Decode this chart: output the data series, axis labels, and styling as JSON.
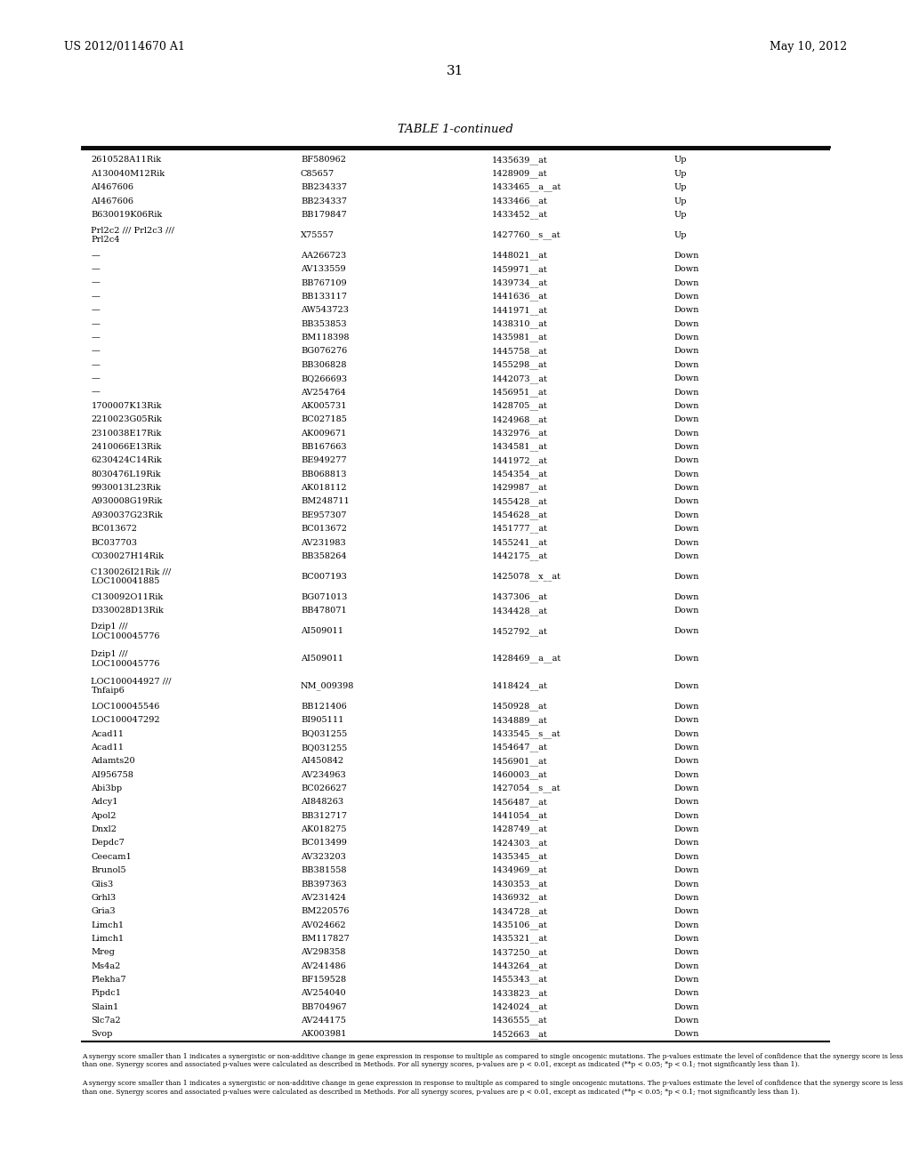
{
  "header_left": "US 2012/0114670 A1",
  "header_right": "May 10, 2012",
  "page_number": "31",
  "table_title": "TABLE 1-continued",
  "rows": [
    [
      "2610528A11Rik",
      "BF580962",
      "1435639__at",
      "Up"
    ],
    [
      "A130040M12Rik",
      "C85657",
      "1428909__at",
      "Up"
    ],
    [
      "AI467606",
      "BB234337",
      "1433465__a__at",
      "Up"
    ],
    [
      "AI467606",
      "BB234337",
      "1433466__at",
      "Up"
    ],
    [
      "B630019K06Rik",
      "BB179847",
      "1433452__at",
      "Up"
    ],
    [
      "Prl2c2 /// Prl2c3 ///\nPrl2c4",
      "X75557",
      "1427760__s__at",
      "Up"
    ],
    [
      "—",
      "AA266723",
      "1448021__at",
      "Down"
    ],
    [
      "—",
      "AV133559",
      "1459971__at",
      "Down"
    ],
    [
      "—",
      "BB767109",
      "1439734__at",
      "Down"
    ],
    [
      "—",
      "BB133117",
      "1441636__at",
      "Down"
    ],
    [
      "—",
      "AW543723",
      "1441971__at",
      "Down"
    ],
    [
      "—",
      "BB353853",
      "1438310__at",
      "Down"
    ],
    [
      "—",
      "BM118398",
      "1435981__at",
      "Down"
    ],
    [
      "—",
      "BG076276",
      "1445758__at",
      "Down"
    ],
    [
      "—",
      "BB306828",
      "1455298__at",
      "Down"
    ],
    [
      "—",
      "BQ266693",
      "1442073__at",
      "Down"
    ],
    [
      "—",
      "AV254764",
      "1456951__at",
      "Down"
    ],
    [
      "1700007K13Rik",
      "AK005731",
      "1428705__at",
      "Down"
    ],
    [
      "2210023G05Rik",
      "BC027185",
      "1424968__at",
      "Down"
    ],
    [
      "2310038E17Rik",
      "AK009671",
      "1432976__at",
      "Down"
    ],
    [
      "2410066E13Rik",
      "BB167663",
      "1434581__at",
      "Down"
    ],
    [
      "6230424C14Rik",
      "BE949277",
      "1441972__at",
      "Down"
    ],
    [
      "8030476L19Rik",
      "BB068813",
      "1454354__at",
      "Down"
    ],
    [
      "9930013L23Rik",
      "AK018112",
      "1429987__at",
      "Down"
    ],
    [
      "A930008G19Rik",
      "BM248711",
      "1455428__at",
      "Down"
    ],
    [
      "A930037G23Rik",
      "BE957307",
      "1454628__at",
      "Down"
    ],
    [
      "BC013672",
      "BC013672",
      "1451777__at",
      "Down"
    ],
    [
      "BC037703",
      "AV231983",
      "1455241__at",
      "Down"
    ],
    [
      "C030027H14Rik",
      "BB358264",
      "1442175__at",
      "Down"
    ],
    [
      "C130026I21Rik ///\nLOC100041885",
      "BC007193",
      "1425078__x__at",
      "Down"
    ],
    [
      "C130092O11Rik",
      "BG071013",
      "1437306__at",
      "Down"
    ],
    [
      "D330028D13Rik",
      "BB478071",
      "1434428__at",
      "Down"
    ],
    [
      "Dzip1 ///\nLOC100045776",
      "AI509011",
      "1452792__at",
      "Down"
    ],
    [
      "Dzip1 ///\nLOC100045776",
      "AI509011",
      "1428469__a__at",
      "Down"
    ],
    [
      "LOC100044927 ///\nTnfaip6",
      "NM_009398",
      "1418424__at",
      "Down"
    ],
    [
      "LOC100045546",
      "BB121406",
      "1450928__at",
      "Down"
    ],
    [
      "LOC100047292",
      "BI905111",
      "1434889__at",
      "Down"
    ],
    [
      "Acad11",
      "BQ031255",
      "1433545__s__at",
      "Down"
    ],
    [
      "Acad11",
      "BQ031255",
      "1454647__at",
      "Down"
    ],
    [
      "Adamts20",
      "AI450842",
      "1456901__at",
      "Down"
    ],
    [
      "AI956758",
      "AV234963",
      "1460003__at",
      "Down"
    ],
    [
      "Abi3bp",
      "BC026627",
      "1427054__s__at",
      "Down"
    ],
    [
      "Adcy1",
      "AI848263",
      "1456487__at",
      "Down"
    ],
    [
      "Apol2",
      "BB312717",
      "1441054__at",
      "Down"
    ],
    [
      "Dnxl2",
      "AK018275",
      "1428749__at",
      "Down"
    ],
    [
      "Depdc7",
      "BC013499",
      "1424303__at",
      "Down"
    ],
    [
      "Ceecam1",
      "AV323203",
      "1435345__at",
      "Down"
    ],
    [
      "Brunol5",
      "BB381558",
      "1434969__at",
      "Down"
    ],
    [
      "Glis3",
      "BB397363",
      "1430353__at",
      "Down"
    ],
    [
      "Grhl3",
      "AV231424",
      "1436932__at",
      "Down"
    ],
    [
      "Gria3",
      "BM220576",
      "1434728__at",
      "Down"
    ],
    [
      "Limch1",
      "AV024662",
      "1435106__at",
      "Down"
    ],
    [
      "Limch1",
      "BM117827",
      "1435321__at",
      "Down"
    ],
    [
      "Mreg",
      "AV298358",
      "1437250__at",
      "Down"
    ],
    [
      "Ms4a2",
      "AV241486",
      "1443264__at",
      "Down"
    ],
    [
      "Plekha7",
      "BF159528",
      "1455343__at",
      "Down"
    ],
    [
      "Pipdc1",
      "AV254040",
      "1433823__at",
      "Down"
    ],
    [
      "Slain1",
      "BB704967",
      "1424024__at",
      "Down"
    ],
    [
      "Slc7a2",
      "AV244175",
      "1436555__at",
      "Down"
    ],
    [
      "Svop",
      "AK003981",
      "1452663__at",
      "Down"
    ]
  ],
  "footnote": "A synergy score smaller than 1 indicates a synergistic or non-additive change in gene expression in response to multiple as compared to single oncogenic mutations. The p-values estimate the level of confidence that the synergy score is less than one. Synergy scores and associated p-values were calculated as described in Methods. For all synergy scores, p-values are p < 0.01, except as indicated (**p < 0.05; *p < 0.1; †not significantly less than 1).",
  "bg_color": "#ffffff",
  "text_color": "#000000",
  "line_color": "#000000"
}
